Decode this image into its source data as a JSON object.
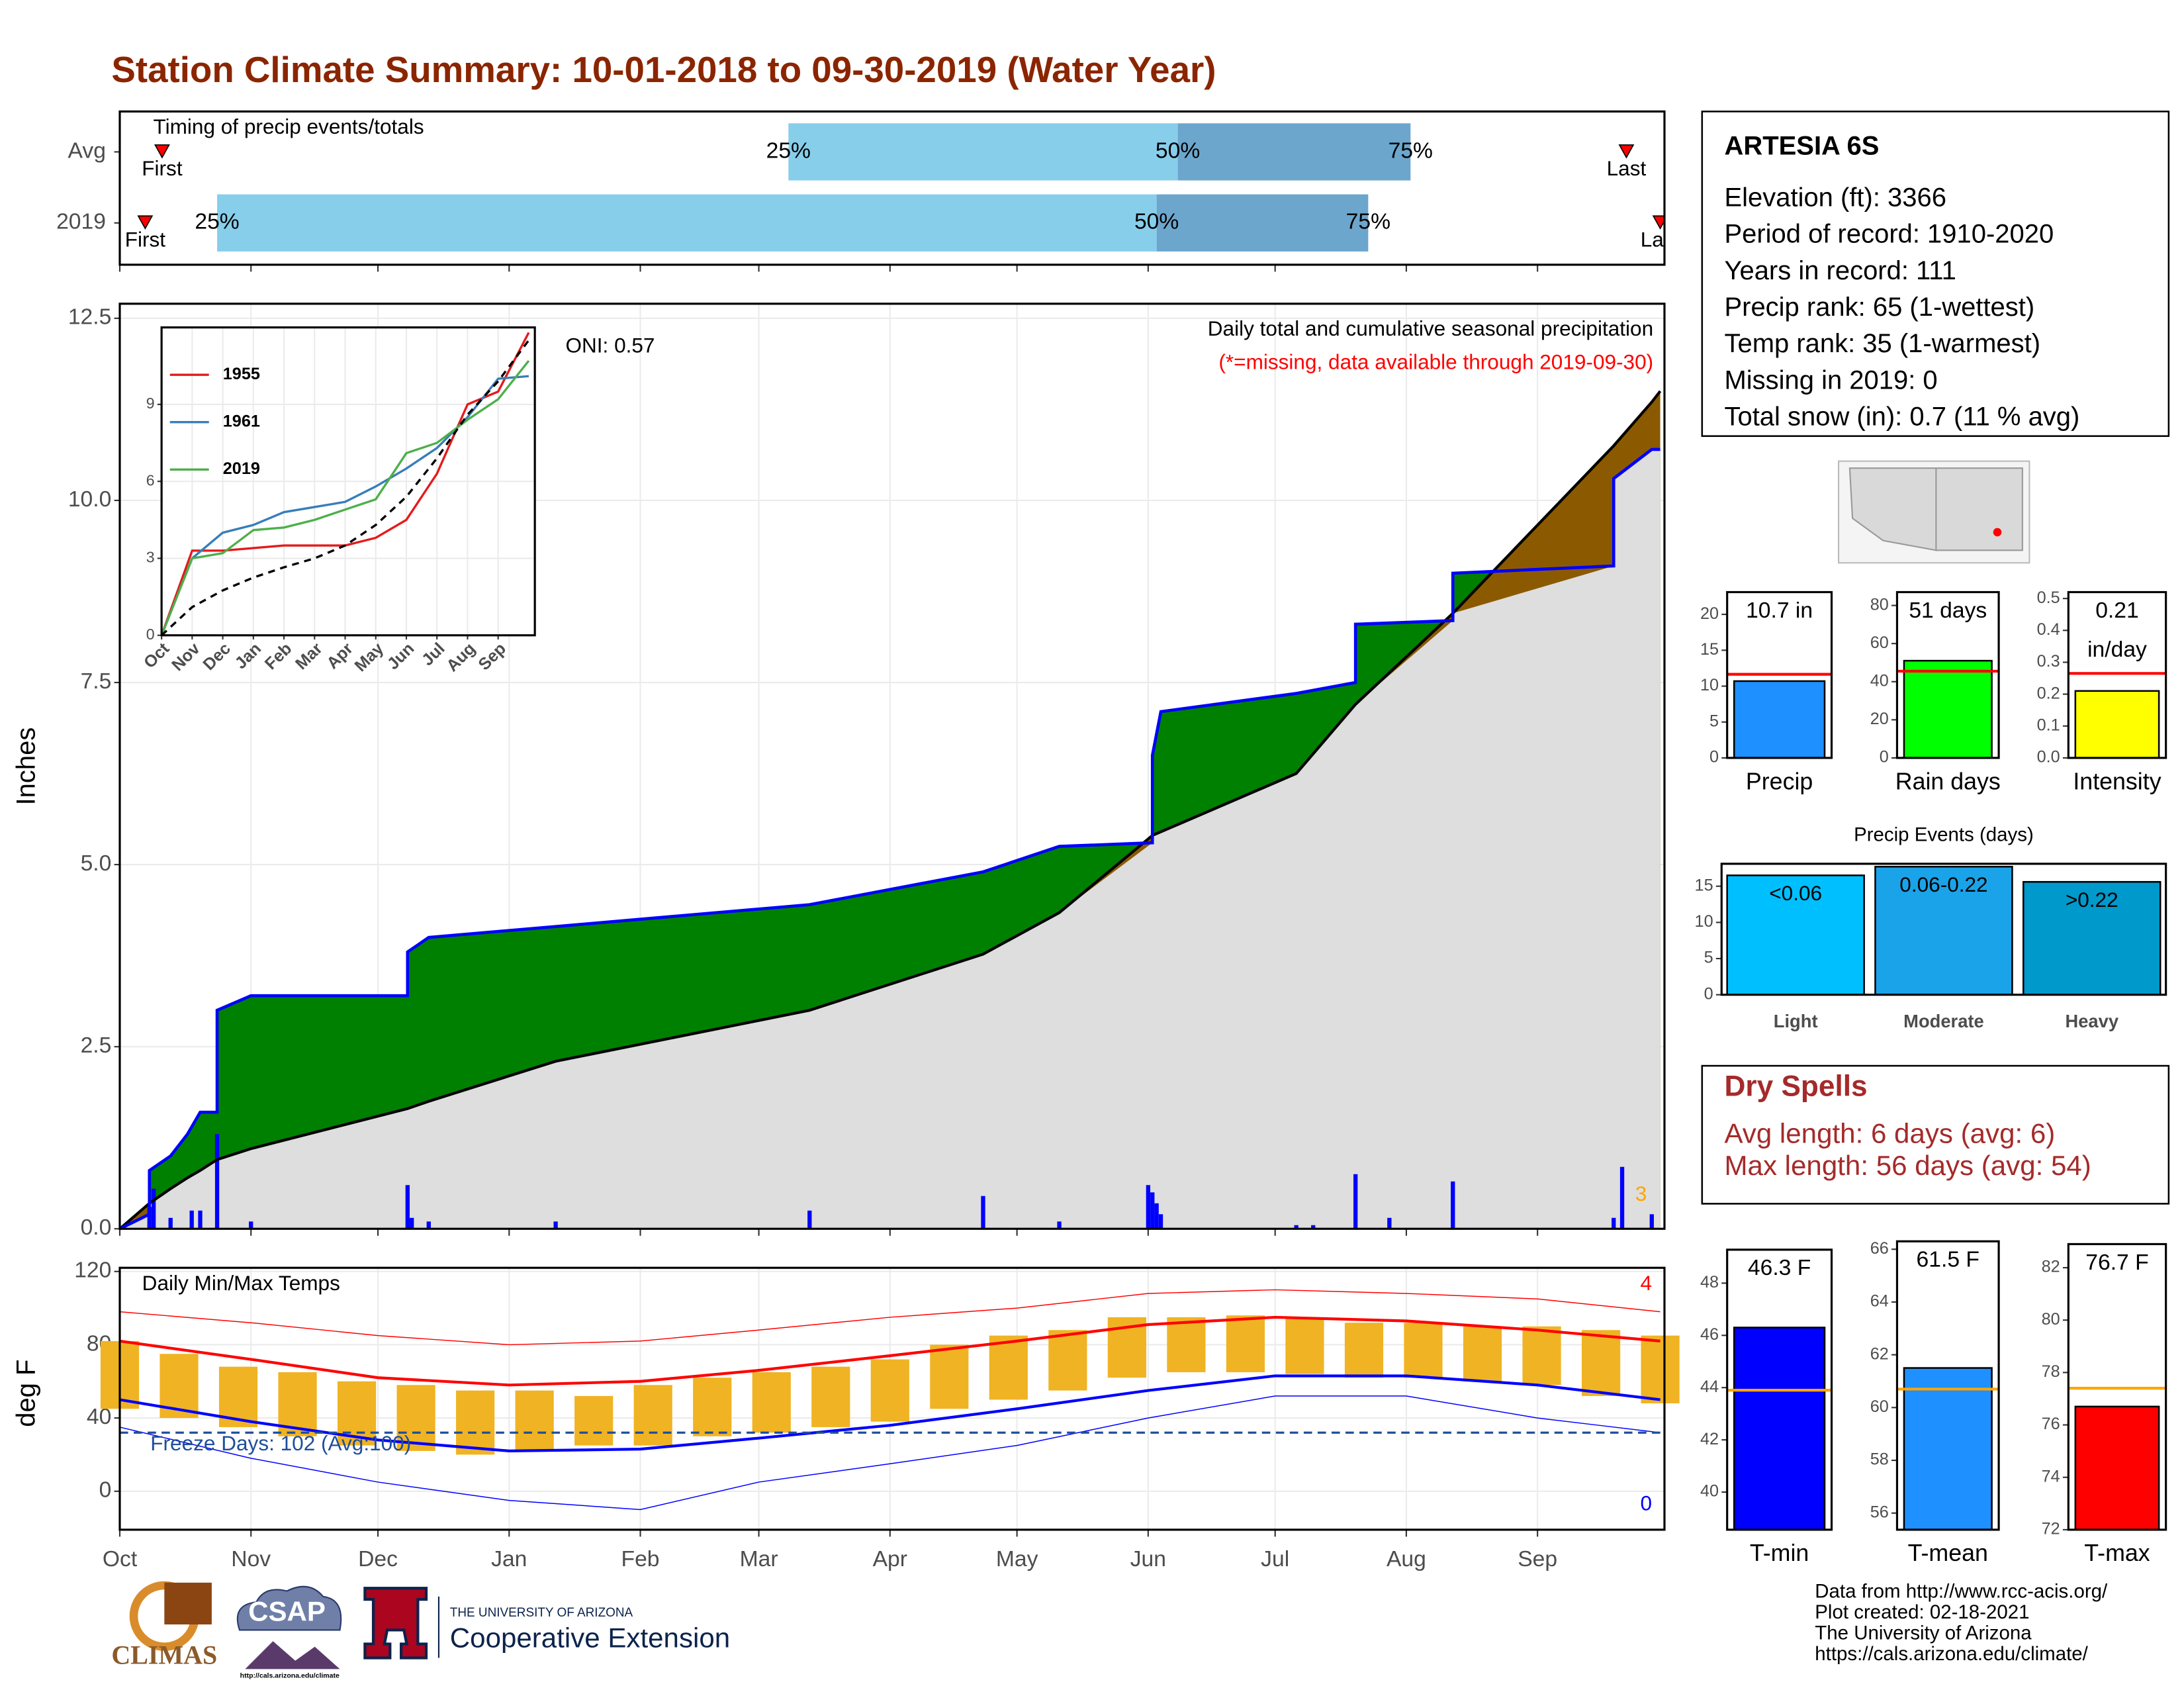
{
  "title": "Station Climate Summary: 10-01-2018 to 09-30-2019 (Water Year)",
  "chart_data": [
    {
      "type": "timing",
      "title": "Timing of precip events/totals",
      "categories": [
        "Avg",
        "2019"
      ],
      "xlim": [
        0,
        365
      ],
      "first": [
        10,
        6
      ],
      "last": [
        356,
        364
      ],
      "p25": [
        158,
        23
      ],
      "p50": [
        250,
        245
      ],
      "p75": [
        305,
        295
      ],
      "first_label": "First",
      "last_label": "Last",
      "quantile_labels": [
        "25%",
        "50%",
        "75%"
      ],
      "colors": [
        "#87ceeb",
        "#6ca6cd"
      ],
      "marker_color": "#ff0000"
    },
    {
      "type": "area",
      "ylabel": "Inches",
      "annotations": [
        {
          "text": "Daily total and cumulative seasonal precipitation",
          "color": "#000000"
        },
        {
          "text": "(*=missing, data available through 2019-09-30)",
          "color": "#ff0000"
        },
        {
          "text": "ONI: 0.57",
          "color": "#000000"
        },
        {
          "text": "3",
          "color": "#ffa500"
        }
      ],
      "x": [
        0,
        7,
        7,
        12,
        16,
        19,
        23,
        23,
        31,
        68,
        68,
        73,
        103,
        163,
        204,
        222,
        244,
        244,
        246,
        278,
        292,
        292,
        315,
        315,
        353,
        353,
        362,
        364
      ],
      "series": [
        {
          "color": "#0000ff",
          "values": [
            0,
            0.2,
            0.8,
            1.0,
            1.3,
            1.6,
            1.6,
            3.0,
            3.2,
            3.2,
            3.8,
            4.0,
            4.15,
            4.45,
            4.9,
            5.25,
            5.3,
            6.5,
            7.1,
            7.35,
            7.5,
            8.3,
            8.35,
            9.0,
            9.1,
            10.3,
            10.7,
            10.7
          ]
        },
        {
          "color": "#000000",
          "values": [
            0,
            0.35,
            0.35,
            0.55,
            0.7,
            0.8,
            0.95,
            0.95,
            1.1,
            1.65,
            1.65,
            1.75,
            2.3,
            3.0,
            3.77,
            4.34,
            5.4,
            5.4,
            5.45,
            6.25,
            7.2,
            7.2,
            8.45,
            8.45,
            10.75,
            10.75,
            11.35,
            11.5
          ]
        }
      ],
      "fill_colors": [
        "#008000",
        "#8b5a00",
        "#dedede"
      ],
      "bar_x": [
        7,
        8,
        12,
        17,
        19,
        23,
        31,
        68,
        69,
        73,
        103,
        163,
        204,
        222,
        243,
        244,
        245,
        246,
        278,
        282,
        292,
        300,
        315,
        353,
        355,
        362
      ],
      "bar_values": [
        0.3,
        0.55,
        0.15,
        0.25,
        0.25,
        1.3,
        0.1,
        0.6,
        0.15,
        0.1,
        0.1,
        0.25,
        0.45,
        0.1,
        0.6,
        0.5,
        0.35,
        0.2,
        0.05,
        0.05,
        0.75,
        0.15,
        0.65,
        0.15,
        0.85,
        0.2
      ],
      "bar_color": "#0000ff",
      "xlim": [
        0,
        365
      ],
      "ylim": [
        0,
        12.7
      ],
      "yticks": [
        {
          "value": 0,
          "label": "0.0"
        },
        2.5,
        {
          "value": 5,
          "label": "5.0"
        },
        7.5,
        {
          "value": 10,
          "label": "10.0"
        },
        12.5
      ],
      "grid": true
    },
    {
      "type": "line",
      "x": [
        0,
        1,
        2,
        3,
        4,
        5,
        6,
        7,
        8,
        9,
        10,
        11,
        12
      ],
      "series": [
        {
          "name": "1955",
          "color": "#e41a1c",
          "values": [
            0,
            3.3,
            3.3,
            3.4,
            3.5,
            3.5,
            3.5,
            3.8,
            4.5,
            6.3,
            9.0,
            9.5,
            11.8
          ]
        },
        {
          "name": "1961",
          "color": "#377eb8",
          "values": [
            0,
            3.0,
            4.0,
            4.3,
            4.8,
            5.0,
            5.2,
            5.8,
            6.5,
            7.3,
            8.5,
            10.0,
            10.1
          ]
        },
        {
          "name": "2019",
          "color": "#4daf4a",
          "values": [
            0,
            3.0,
            3.2,
            4.1,
            4.2,
            4.5,
            4.9,
            5.3,
            7.1,
            7.5,
            8.4,
            9.2,
            10.7
          ]
        },
        {
          "color": "#000000",
          "dash": true,
          "values": [
            0,
            1.1,
            1.75,
            2.25,
            2.65,
            3.0,
            3.5,
            4.3,
            5.4,
            6.9,
            8.6,
            9.9,
            11.5
          ]
        }
      ],
      "xlim": [
        0,
        12.2
      ],
      "ylim": [
        0,
        12
      ],
      "yticks": [
        0,
        3,
        6,
        9
      ],
      "xticks": [
        {
          "value": 0,
          "label": "Oct"
        },
        {
          "value": 1,
          "label": "Nov"
        },
        {
          "value": 2,
          "label": "Dec"
        },
        {
          "value": 3,
          "label": "Jan"
        },
        {
          "value": 4,
          "label": "Feb"
        },
        {
          "value": 5,
          "label": "Mar"
        },
        {
          "value": 6,
          "label": "Apr"
        },
        {
          "value": 7,
          "label": "May"
        },
        {
          "value": 8,
          "label": "Jun"
        },
        {
          "value": 9,
          "label": "Jul"
        },
        {
          "value": 10,
          "label": "Aug"
        },
        {
          "value": 11,
          "label": "Sep"
        }
      ]
    },
    {
      "type": "range",
      "title": "Daily Min/Max Temps",
      "ylabel": "deg F",
      "annotations": [
        {
          "text": "Freeze Days: 102 (Avg:100)",
          "color": "#1f4e9c"
        },
        {
          "text": "4",
          "color": "#ff0000"
        },
        {
          "text": "0",
          "color": "#0000ff"
        }
      ],
      "x": [
        0,
        14,
        28,
        42,
        56,
        70,
        84,
        98,
        112,
        126,
        140,
        154,
        168,
        182,
        196,
        210,
        224,
        238,
        252,
        266,
        280,
        294,
        308,
        322,
        336,
        350,
        364
      ],
      "high": [
        82,
        75,
        68,
        65,
        60,
        58,
        55,
        55,
        52,
        58,
        62,
        65,
        68,
        72,
        80,
        85,
        88,
        95,
        95,
        96,
        94,
        92,
        92,
        90,
        90,
        88,
        85
      ],
      "low": [
        45,
        40,
        35,
        30,
        25,
        22,
        20,
        22,
        25,
        25,
        30,
        32,
        35,
        38,
        45,
        50,
        55,
        62,
        65,
        65,
        64,
        62,
        62,
        60,
        58,
        52,
        48
      ],
      "bar_color": "#f0b323",
      "normal_x": [
        0,
        31,
        61,
        92,
        123,
        151,
        182,
        212,
        243,
        273,
        304,
        335,
        364
      ],
      "normal_high": [
        82,
        72,
        62,
        58,
        60,
        66,
        74,
        82,
        91,
        95,
        93,
        88,
        82
      ],
      "normal_low": [
        50,
        38,
        28,
        22,
        23,
        29,
        36,
        45,
        55,
        63,
        63,
        58,
        50
      ],
      "record_high": [
        98,
        92,
        85,
        80,
        82,
        88,
        95,
        100,
        108,
        110,
        108,
        105,
        98
      ],
      "record_low": [
        35,
        18,
        5,
        -5,
        -10,
        5,
        15,
        25,
        40,
        52,
        52,
        40,
        32
      ],
      "freeze": 32,
      "high_color": "#ff0000",
      "low_color": "#0000ff",
      "freeze_color": "#1f4e9c",
      "xlim": [
        0,
        365
      ],
      "ylim": [
        -21,
        122
      ],
      "yticks": [
        0,
        40,
        80,
        120
      ],
      "xticks": [
        {
          "value": 0,
          "label": "Oct"
        },
        {
          "value": 31,
          "label": "Nov"
        },
        {
          "value": 61,
          "label": "Dec"
        },
        {
          "value": 92,
          "label": "Jan"
        },
        {
          "value": 123,
          "label": "Feb"
        },
        {
          "value": 151,
          "label": "Mar"
        },
        {
          "value": 182,
          "label": "Apr"
        },
        {
          "value": 212,
          "label": "May"
        },
        {
          "value": 243,
          "label": "Jun"
        },
        {
          "value": 273,
          "label": "Jul"
        },
        {
          "value": 304,
          "label": "Aug"
        },
        {
          "value": 335,
          "label": "Sep"
        }
      ],
      "grid": true
    },
    {
      "type": "bar",
      "categories": [
        "Precip"
      ],
      "values": [
        10.7
      ],
      "value_labels": [
        "10.7 in"
      ],
      "average": 11.65,
      "average_color": "#ff0000",
      "color": "#1e90ff",
      "ylim": [
        0,
        23.1
      ],
      "yticks": [
        0,
        5,
        10,
        15,
        20
      ]
    },
    {
      "type": "bar",
      "categories": [
        "Rain days"
      ],
      "values": [
        51
      ],
      "value_labels": [
        "51 days"
      ],
      "average": 45.5,
      "average_color": "#ff0000",
      "color": "#00ff00",
      "ylim": [
        0,
        87
      ],
      "yticks": [
        0,
        20,
        40,
        60,
        80
      ]
    },
    {
      "type": "bar",
      "categories": [
        "Intensity"
      ],
      "values": [
        0.21
      ],
      "value_labels": [
        "0.21"
      ],
      "unit_label": "in/day",
      "average": 0.265,
      "average_color": "#ff0000",
      "color": "#ffff00",
      "ylim": [
        0,
        0.52
      ],
      "yticks": [
        {
          "value": 0,
          "label": "0.0"
        },
        0.1,
        0.2,
        0.3,
        0.4,
        0.5
      ]
    },
    {
      "type": "bar",
      "title": "Precip Events (days)",
      "categories": [
        "Light",
        "Moderate",
        "Heavy"
      ],
      "values": [
        16.5,
        17.7,
        15.6
      ],
      "bin_labels": [
        "<0.06",
        "0.06-0.22",
        ">0.22"
      ],
      "colors": [
        "#00bfff",
        "#1aa3e8",
        "#0099cc"
      ],
      "ylim": [
        0,
        18.1
      ],
      "yticks": [
        0,
        5,
        10,
        15
      ]
    },
    {
      "type": "bar",
      "categories": [
        "T-min"
      ],
      "values": [
        46.3
      ],
      "value_labels": [
        "46.3 F"
      ],
      "average": 43.9,
      "average_color": "#ffa500",
      "color": "#0000ff",
      "ylim": [
        38.56,
        49.28
      ],
      "yticks": [
        40,
        42,
        44,
        46,
        48
      ]
    },
    {
      "type": "bar",
      "categories": [
        "T-mean"
      ],
      "values": [
        61.5
      ],
      "value_labels": [
        "61.5 F"
      ],
      "average": 60.7,
      "average_color": "#ffa500",
      "color": "#1e90ff",
      "ylim": [
        55.37,
        66.3
      ],
      "yticks": [
        56,
        58,
        60,
        62,
        64,
        66
      ]
    },
    {
      "type": "bar",
      "categories": [
        "T-max"
      ],
      "values": [
        76.7
      ],
      "value_labels": [
        "76.7 F"
      ],
      "average": 77.4,
      "average_color": "#ffa500",
      "color": "#ff0000",
      "ylim": [
        72,
        82.9
      ],
      "yticks": [
        72,
        74,
        76,
        78,
        80,
        82
      ]
    }
  ],
  "station": {
    "name": "ARTESIA 6S",
    "lines": [
      "Elevation (ft): 3366",
      "Period of record: 1910-2020",
      "Years in record: 111",
      "Precip rank: 65 (1-wettest)",
      "Temp rank: 35 (1-warmest)",
      "Missing in 2019: 0",
      "Total snow (in): 0.7 (11 % avg)"
    ]
  },
  "dry_spells": {
    "title": "Dry Spells",
    "lines": [
      "Avg length: 6 days (avg: 6)",
      "Max length: 56 days (avg: 54)"
    ]
  },
  "footer": [
    "Data from http://www.rcc-acis.org/",
    "Plot created: 02-18-2021",
    "The University of Arizona",
    "https://cals.arizona.edu/climate/"
  ],
  "logos": {
    "climas": "CLIMAS",
    "csap": "CSAP",
    "csap_url": "http://cals.arizona.edu/climate",
    "ua_small": "THE UNIVERSITY OF ARIZONA",
    "ua_big": "Cooperative Extension"
  }
}
